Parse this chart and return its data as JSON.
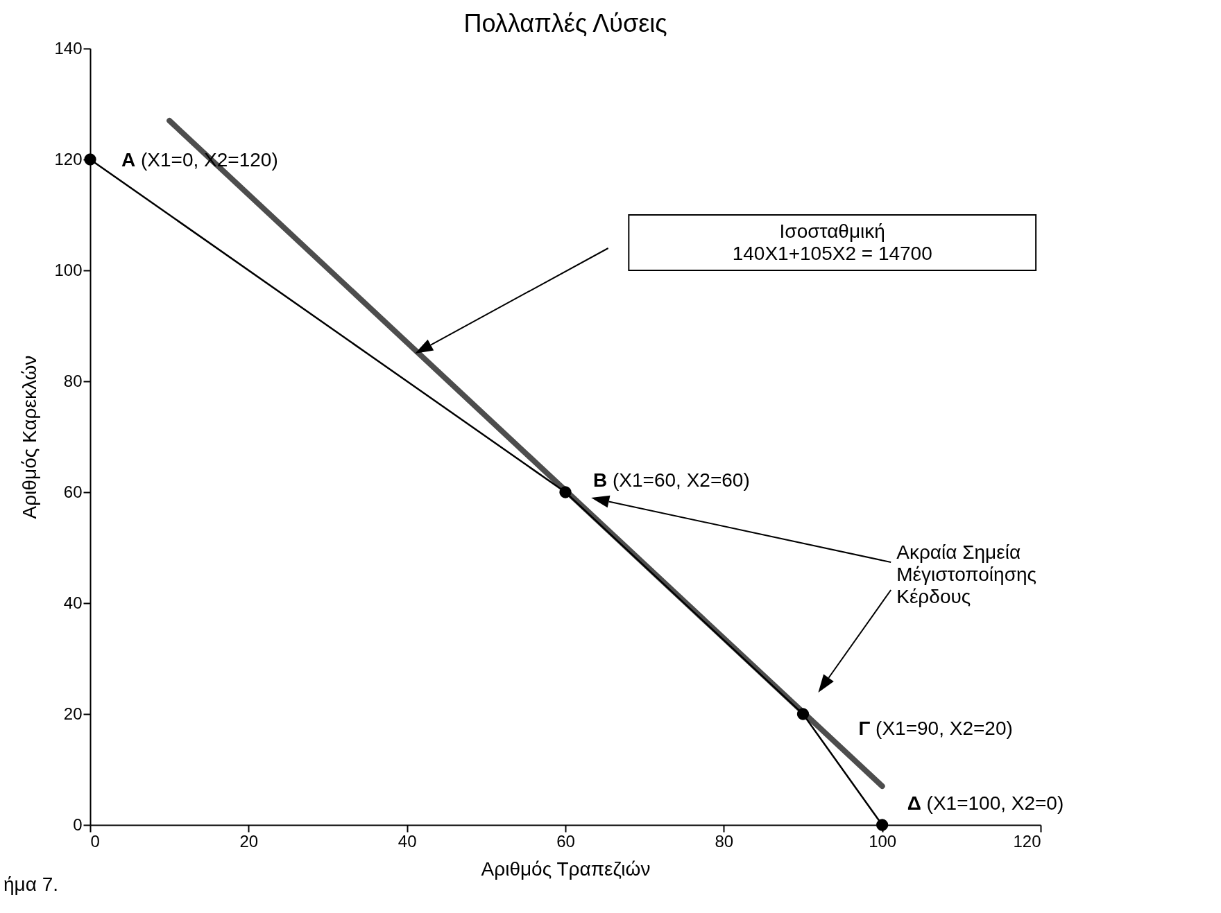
{
  "chart_data": {
    "type": "line",
    "title": "Πολλαπλές Λύσεις",
    "xlabel": "Αριθμός Τραπεζιών",
    "ylabel": "Αριθμός Καρεκλών",
    "series": [
      {
        "color": "#000000",
        "x": [
          0,
          60,
          90,
          100
        ],
        "values": [
          120,
          60,
          20,
          0
        ],
        "marker": "circle"
      },
      {
        "color": "#4d4d4d",
        "x": [
          10,
          100
        ],
        "values": [
          127,
          7
        ],
        "marker": "none"
      }
    ],
    "xlim": [
      0,
      120
    ],
    "xticks": [
      0,
      20,
      40,
      60,
      80,
      100,
      120
    ],
    "ylim": [
      0,
      140
    ],
    "yticks": [
      0,
      20,
      40,
      60,
      80,
      100,
      120,
      140
    ],
    "annotations": [
      {
        "text": "A (X1=0, X2=120)",
        "x": 0,
        "y": 120
      },
      {
        "text": "B (X1=60, X2=60)",
        "x": 60,
        "y": 60
      },
      {
        "text": "Γ (X1=90, X2=20)",
        "x": 90,
        "y": 20
      },
      {
        "text": "Δ (X1=100, X2=0)",
        "x": 100,
        "y": 0
      },
      "Ισοσταθμική\n140X1+105X2 = 14700",
      "Ακραία Σημεία\nΜέγιστοποίησης\nΚέρδους",
      "ήμα 7."
    ]
  }
}
